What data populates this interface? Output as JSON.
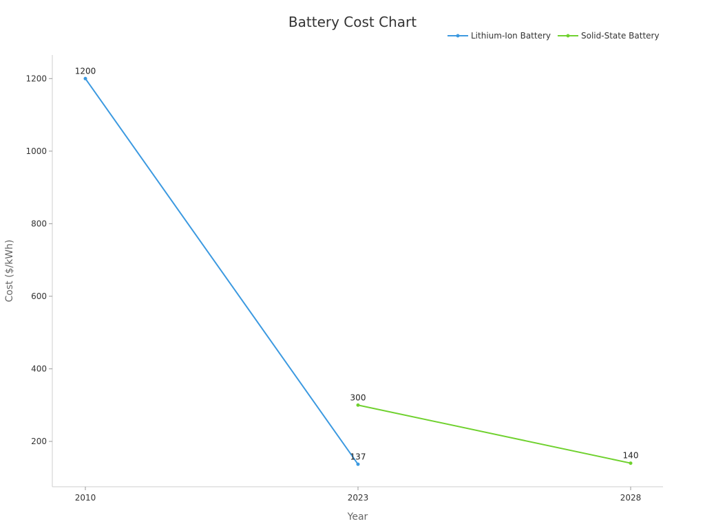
{
  "chart_data": {
    "type": "line",
    "title": "Battery Cost Chart",
    "xlabel": "Year",
    "ylabel": "Cost ($/kWh)",
    "x_categories": [
      "2010",
      "2023",
      "2028"
    ],
    "ylim": [
      75,
      1265
    ],
    "y_ticks": [
      200,
      400,
      600,
      800,
      1000,
      1200
    ],
    "grid": false,
    "legend_position": "top-right",
    "series": [
      {
        "name": "Lithium-Ion Battery",
        "color": "#3b99e0",
        "points": [
          {
            "x": "2010",
            "y": 1200
          },
          {
            "x": "2023",
            "y": 137
          }
        ]
      },
      {
        "name": "Solid-State Battery",
        "color": "#6fd12e",
        "points": [
          {
            "x": "2023",
            "y": 300
          },
          {
            "x": "2028",
            "y": 140
          }
        ]
      }
    ]
  }
}
